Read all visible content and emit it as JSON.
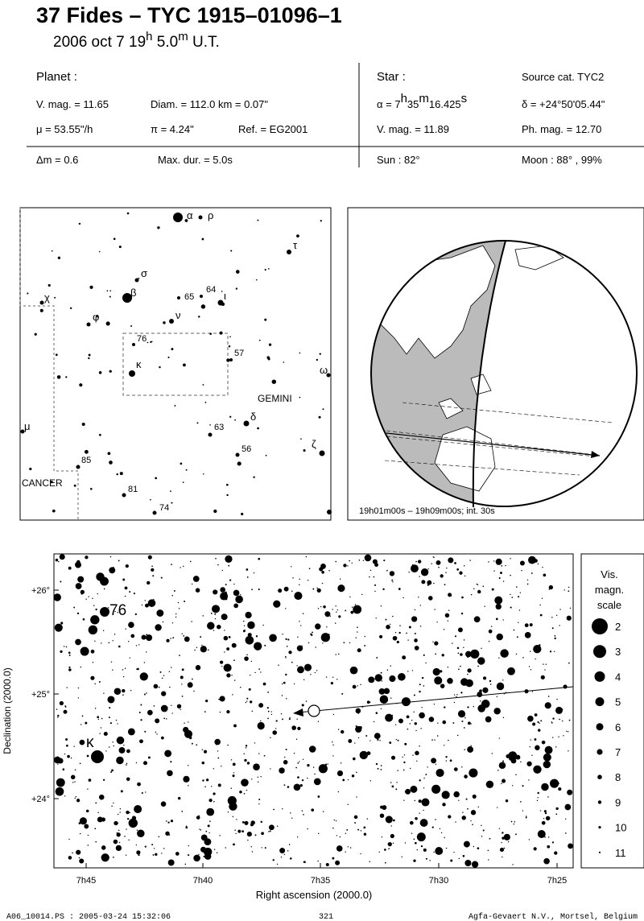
{
  "header": {
    "title": "37 Fides  –  TYC 1915–01096–1",
    "date": {
      "prefix": "2006 oct  7  19",
      "h": "h",
      "minutes": " 5.0",
      "m": "m",
      "suffix": " U.T."
    }
  },
  "planet": {
    "heading": "Planet :",
    "vmag": "V. mag. = 11.65",
    "diam": "Diam. = 112.0 km = 0.07\"",
    "mu": "μ =  53.55\"/h",
    "parallax": "π =  4.24\"",
    "ref": "Ref. = EG2001"
  },
  "star": {
    "heading": "Star :",
    "source": "Source cat.  TYC2",
    "ra": {
      "prefix": "α =  7",
      "h": "h",
      "min": "35",
      "m": "m",
      "sec": "16.425",
      "s": "s"
    },
    "dec": "δ = +24°50'05.44\"",
    "vmag": "V. mag. = 11.89",
    "phmag": "Ph. mag. = 12.70"
  },
  "event": {
    "dmag": "Δm = 0.6",
    "maxdur": "Max. dur. = 5.0s",
    "sun": "Sun :  82°",
    "moon": "Moon :  88° , 99%"
  },
  "finder": {
    "labels": [
      "α",
      "ρ",
      "τ",
      "σ",
      "65",
      "64",
      "ι",
      "β",
      "ν",
      "χ",
      "φ",
      "76",
      "57",
      "κ",
      "ω",
      "GEMINI",
      "μ",
      "δ",
      "63",
      "ζ",
      "56",
      "85",
      "CANCER",
      "81",
      "74"
    ]
  },
  "globe": {
    "caption": "19h01m00s – 19h09m00s; int. 30s"
  },
  "chart": {
    "xlabel": "Right ascension (2000.0)",
    "ylabel": "Declination (2000.0)",
    "xticks": [
      "7h45",
      "7h40",
      "7h35",
      "7h30",
      "7h25"
    ],
    "yticks": [
      "+26°",
      "+25°",
      "+24°"
    ],
    "star_labels": [
      "76",
      "κ"
    ],
    "scale": {
      "title": [
        "Vis.",
        "magn.",
        "scale"
      ],
      "magnitudes": [
        2,
        3,
        4,
        5,
        6,
        7,
        8,
        9,
        10,
        11
      ]
    }
  },
  "footer": {
    "file": "A06_10014.PS : 2005-03-24 15:32:06",
    "page": "321",
    "credit": "Agfa-Gevaert N.V., Mortsel, Belgium"
  }
}
